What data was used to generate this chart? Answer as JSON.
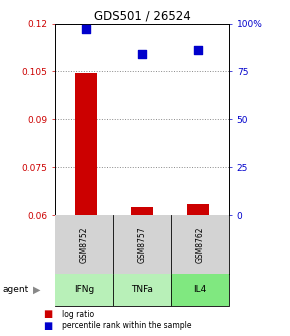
{
  "title": "GDS501 / 26524",
  "samples": [
    "GSM8752",
    "GSM8757",
    "GSM8762"
  ],
  "agents": [
    "IFNg",
    "TNFa",
    "IL4"
  ],
  "bar_values": [
    0.1045,
    0.0625,
    0.0635
  ],
  "bar_color": "#cc0000",
  "dot_values_pct": [
    97,
    84,
    86
  ],
  "dot_color": "#0000cc",
  "ylim_left": [
    0.06,
    0.12
  ],
  "ylim_right": [
    0,
    100
  ],
  "yticks_left": [
    0.06,
    0.075,
    0.09,
    0.105,
    0.12
  ],
  "yticks_right": [
    0,
    25,
    50,
    75,
    100
  ],
  "ytick_labels_left": [
    "0.06",
    "0.075",
    "0.09",
    "0.105",
    "0.12"
  ],
  "ytick_labels_right": [
    "0",
    "25",
    "50",
    "75",
    "100%"
  ],
  "grid_color": "#888888",
  "sample_box_color": "#d3d3d3",
  "agent_colors": [
    "#b8f0b8",
    "#b8f0b8",
    "#80e880"
  ],
  "bar_width": 0.4,
  "dot_size": 30,
  "left_color": "#cc0000",
  "right_color": "#0000cc"
}
